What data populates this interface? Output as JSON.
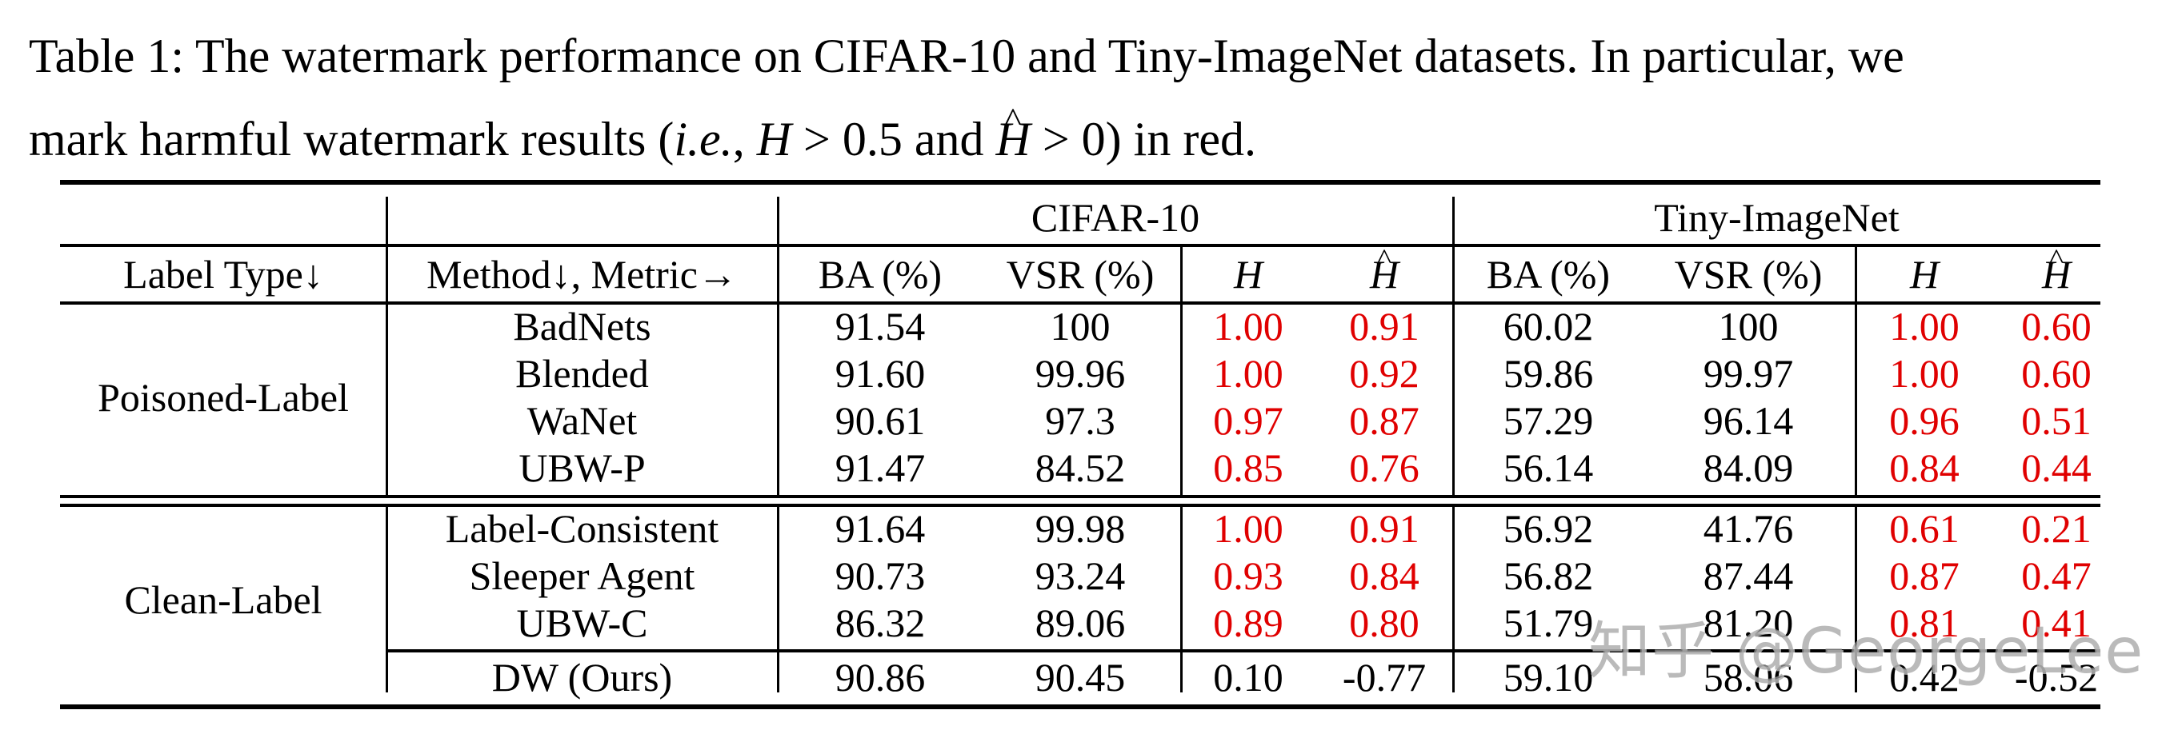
{
  "caption": {
    "line1": "Table 1: The watermark performance on CIFAR-10 and Tiny-ImageNet datasets. In particular, we",
    "line2_pre": "mark harmful watermark results (",
    "line2_ie": "i.e.",
    "line2_mid1": ", ",
    "line2_H": "H",
    "line2_mid2": " > 0.5 and ",
    "line2_Hhat": "H",
    "line2_post": " > 0) in red."
  },
  "table": {
    "group_headers": [
      "CIFAR-10",
      "Tiny-ImageNet"
    ],
    "col_headers": {
      "label_type": "Label Type↓",
      "method": "Method↓, Metric→",
      "metrics": [
        "BA (%)",
        "VSR (%)",
        "H",
        "Ĥ",
        "BA (%)",
        "VSR (%)",
        "H",
        "Ĥ"
      ]
    },
    "groups": [
      {
        "label": "Poisoned-Label",
        "rows": [
          {
            "method": "BadNets",
            "values": [
              "91.54",
              "100",
              "1.00",
              "0.91",
              "60.02",
              "100",
              "1.00",
              "0.60"
            ],
            "red": [
              false,
              false,
              true,
              true,
              false,
              false,
              true,
              true
            ]
          },
          {
            "method": "Blended",
            "values": [
              "91.60",
              "99.96",
              "1.00",
              "0.92",
              "59.86",
              "99.97",
              "1.00",
              "0.60"
            ],
            "red": [
              false,
              false,
              true,
              true,
              false,
              false,
              true,
              true
            ]
          },
          {
            "method": "WaNet",
            "values": [
              "90.61",
              "97.3",
              "0.97",
              "0.87",
              "57.29",
              "96.14",
              "0.96",
              "0.51"
            ],
            "red": [
              false,
              false,
              true,
              true,
              false,
              false,
              true,
              true
            ]
          },
          {
            "method": "UBW-P",
            "values": [
              "91.47",
              "84.52",
              "0.85",
              "0.76",
              "56.14",
              "84.09",
              "0.84",
              "0.44"
            ],
            "red": [
              false,
              false,
              true,
              true,
              false,
              false,
              true,
              true
            ]
          }
        ]
      },
      {
        "label": "Clean-Label",
        "rows": [
          {
            "method": "Label-Consistent",
            "values": [
              "91.64",
              "99.98",
              "1.00",
              "0.91",
              "56.92",
              "41.76",
              "0.61",
              "0.21"
            ],
            "red": [
              false,
              false,
              true,
              true,
              false,
              false,
              true,
              true
            ]
          },
          {
            "method": "Sleeper Agent",
            "values": [
              "90.73",
              "93.24",
              "0.93",
              "0.84",
              "56.82",
              "87.44",
              "0.87",
              "0.47"
            ],
            "red": [
              false,
              false,
              true,
              true,
              false,
              false,
              true,
              true
            ]
          },
          {
            "method": "UBW-C",
            "values": [
              "86.32",
              "89.06",
              "0.89",
              "0.80",
              "51.79",
              "81.20",
              "0.81",
              "0.41"
            ],
            "red": [
              false,
              false,
              true,
              true,
              false,
              false,
              true,
              true
            ]
          },
          {
            "method": "DW (Ours)",
            "values": [
              "90.86",
              "90.45",
              "0.10",
              "-0.77",
              "59.10",
              "58.06",
              "0.42",
              "-0.52"
            ],
            "red": [
              false,
              false,
              false,
              false,
              false,
              false,
              false,
              false
            ]
          }
        ]
      }
    ]
  },
  "watermark": "知乎 @GeorgeLee",
  "colors": {
    "harmful": "#e00000",
    "text": "#000000"
  }
}
